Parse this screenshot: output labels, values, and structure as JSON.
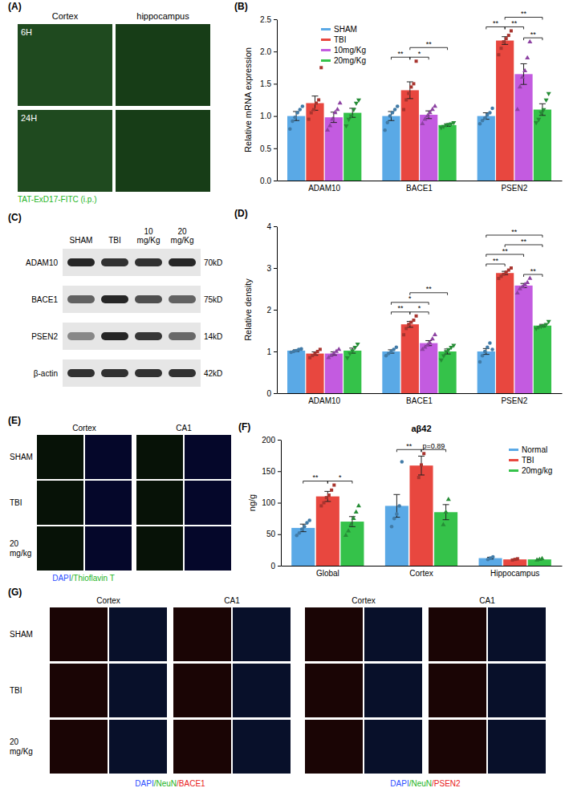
{
  "chart_data": [
    {
      "type": "bar",
      "panel_label": "(B)",
      "y_label": "Relative mRNA expression",
      "categories": [
        "ADAM10",
        "BACE1",
        "PSEN2"
      ],
      "ylim": [
        0,
        2.5
      ],
      "yticks": [
        {
          "value": 0,
          "label": "0.0"
        },
        0.5,
        {
          "value": 1,
          "label": "1.0"
        },
        1.5,
        {
          "value": 2,
          "label": "2.0"
        },
        2.5
      ],
      "legend": "upper left",
      "series": [
        {
          "name": "SHAM",
          "color": "#5aa9e6",
          "marker": "circle",
          "values": [
            1.0,
            1.0,
            1.0
          ],
          "errors": [
            0.07,
            0.07,
            0.05
          ],
          "points": [
            [
              0.8,
              0.92,
              0.98,
              1.05,
              1.1,
              1.15
            ],
            [
              0.78,
              0.9,
              1.0,
              1.05,
              1.1,
              1.15
            ],
            [
              0.88,
              0.93,
              0.97,
              1.02,
              1.05,
              1.12
            ]
          ]
        },
        {
          "name": "TBI",
          "color": "#e8473f",
          "marker": "square",
          "values": [
            1.2,
            1.4,
            2.17
          ],
          "errors": [
            0.11,
            0.13,
            0.06
          ],
          "points": [
            [
              0.95,
              1.05,
              1.1,
              1.2,
              1.25,
              1.75
            ],
            [
              1.1,
              1.25,
              1.35,
              1.45,
              1.5,
              1.85
            ],
            [
              1.95,
              2.05,
              2.15,
              2.2,
              2.25,
              2.32
            ]
          ]
        },
        {
          "name": "10mg/Kg",
          "color": "#c35be0",
          "marker": "triangle",
          "values": [
            0.98,
            1.02,
            1.65
          ],
          "errors": [
            0.08,
            0.06,
            0.16
          ],
          "points": [
            [
              0.78,
              0.85,
              0.95,
              1.05,
              1.1,
              1.2
            ],
            [
              0.88,
              0.95,
              1.0,
              1.05,
              1.1,
              1.15
            ],
            [
              1.1,
              1.45,
              1.6,
              1.7,
              1.9,
              2.15
            ]
          ]
        },
        {
          "name": "20mg/Kg",
          "color": "#35c24a",
          "marker": "triangle-down",
          "values": [
            1.05,
            0.86,
            1.1
          ],
          "errors": [
            0.07,
            0.02,
            0.09
          ],
          "points": [
            [
              0.85,
              0.95,
              1.0,
              1.1,
              1.2,
              1.25
            ],
            [
              0.82,
              0.84,
              0.86,
              0.87,
              0.88,
              0.9
            ],
            [
              0.9,
              0.95,
              1.05,
              1.1,
              1.25,
              1.35
            ]
          ]
        }
      ],
      "annotations": [
        {
          "category": 1,
          "series": [
            0,
            1
          ],
          "label": "**"
        },
        {
          "category": 1,
          "series": [
            1,
            2
          ],
          "label": "*"
        },
        {
          "category": 1,
          "series": [
            1,
            3
          ],
          "label": "**"
        },
        {
          "category": 2,
          "series": [
            0,
            1
          ],
          "label": "**"
        },
        {
          "category": 2,
          "series": [
            1,
            2
          ],
          "label": "**"
        },
        {
          "category": 2,
          "series": [
            2,
            3
          ],
          "label": "**"
        },
        {
          "category": 2,
          "series": [
            1,
            3
          ],
          "label": "**"
        }
      ]
    },
    {
      "type": "bar",
      "panel_label": "(D)",
      "y_label": "Relative density",
      "categories": [
        "ADAM10",
        "BACE1",
        "PSEN2"
      ],
      "ylim": [
        0,
        4
      ],
      "yticks": [
        0,
        1,
        2,
        3,
        4
      ],
      "series": [
        {
          "color": "#5aa9e6",
          "marker": "circle",
          "values": [
            1.02,
            1.0,
            1.0
          ],
          "errors": [
            0.02,
            0.04,
            0.07
          ],
          "points": [
            [
              0.98,
              1.0,
              1.02,
              1.05,
              1.06
            ],
            [
              0.9,
              0.95,
              1.0,
              1.05,
              1.1
            ],
            [
              0.75,
              0.9,
              1.0,
              1.1,
              1.2,
              1.05
            ]
          ]
        },
        {
          "color": "#e8473f",
          "marker": "square",
          "values": [
            0.95,
            1.65,
            2.88
          ],
          "errors": [
            0.04,
            0.07,
            0.04
          ],
          "points": [
            [
              0.85,
              0.9,
              0.95,
              1.0,
              1.05
            ],
            [
              1.4,
              1.55,
              1.65,
              1.7,
              1.75,
              1.85
            ],
            [
              2.75,
              2.8,
              2.85,
              2.9,
              2.95,
              3.0
            ]
          ]
        },
        {
          "color": "#c35be0",
          "marker": "triangle",
          "values": [
            0.95,
            1.2,
            2.58
          ],
          "errors": [
            0.04,
            0.06,
            0.05
          ],
          "points": [
            [
              0.85,
              0.9,
              0.95,
              1.0,
              1.05
            ],
            [
              1.05,
              1.1,
              1.15,
              1.2,
              1.3,
              1.4
            ],
            [
              2.4,
              2.5,
              2.55,
              2.6,
              2.65,
              2.75
            ]
          ]
        },
        {
          "color": "#35c24a",
          "marker": "triangle-down",
          "values": [
            1.02,
            1.0,
            1.62
          ],
          "errors": [
            0.06,
            0.06,
            0.03
          ],
          "points": [
            [
              0.85,
              0.95,
              1.02,
              1.1,
              1.18
            ],
            [
              0.8,
              0.9,
              1.0,
              1.05,
              1.1,
              1.15
            ],
            [
              1.55,
              1.58,
              1.6,
              1.62,
              1.65,
              1.72
            ]
          ]
        }
      ],
      "annotations": [
        {
          "category": 1,
          "series": [
            0,
            1
          ],
          "label": "**"
        },
        {
          "category": 1,
          "series": [
            1,
            2
          ],
          "label": "*"
        },
        {
          "category": 1,
          "series": [
            0,
            2
          ],
          "label": "*"
        },
        {
          "category": 1,
          "series": [
            1,
            3
          ],
          "label": "**"
        },
        {
          "category": 2,
          "series": [
            0,
            1
          ],
          "label": "**"
        },
        {
          "category": 2,
          "series": [
            2,
            3
          ],
          "label": "**"
        },
        {
          "category": 2,
          "series": [
            0,
            2
          ],
          "label": "**"
        },
        {
          "category": 2,
          "series": [
            1,
            3
          ],
          "label": "**"
        },
        {
          "category": 2,
          "series": [
            0,
            3
          ],
          "label": "**"
        }
      ]
    },
    {
      "type": "bar",
      "panel_label": "(F)",
      "title": "aβ42",
      "y_label": "ng/g",
      "categories": [
        "Global",
        "Cortex",
        "Hippocampus"
      ],
      "ylim": [
        0,
        200
      ],
      "yticks": [
        0,
        50,
        100,
        150,
        200
      ],
      "legend": "upper right",
      "series": [
        {
          "name": "Normal",
          "color": "#5aa9e6",
          "marker": "circle",
          "values": [
            60,
            95,
            12
          ],
          "errors": [
            6,
            18,
            1.5
          ],
          "points": [
            [
              48,
              52,
              58,
              62,
              68,
              72
            ],
            [
              62,
              75,
              82,
              95,
              165
            ],
            [
              10,
              12,
              14
            ]
          ]
        },
        {
          "name": "TBI",
          "color": "#e8473f",
          "marker": "square",
          "values": [
            110,
            159,
            10
          ],
          "errors": [
            8,
            15,
            0.7
          ],
          "points": [
            [
              95,
              100,
              108,
              112,
              120,
              128
            ],
            [
              140,
              160,
              178
            ],
            [
              9,
              10,
              11
            ]
          ]
        },
        {
          "name": "20mg/kg",
          "color": "#35c24a",
          "marker": "triangle",
          "values": [
            70,
            85,
            10
          ],
          "errors": [
            8,
            12,
            0.7
          ],
          "points": [
            [
              48,
              55,
              65,
              75,
              85,
              95
            ],
            [
              65,
              85,
              105
            ],
            [
              9,
              10,
              11
            ]
          ]
        }
      ],
      "annotations": [
        {
          "category": 0,
          "series": [
            0,
            1
          ],
          "label": "**"
        },
        {
          "category": 0,
          "series": [
            1,
            2
          ],
          "label": "*"
        },
        {
          "category": 1,
          "series": [
            0,
            1
          ],
          "label": "**"
        },
        {
          "category": 1,
          "series": [
            1,
            2
          ],
          "label": "p=0.89"
        }
      ]
    }
  ],
  "panels": {
    "A": {
      "label": "(A)",
      "columns": [
        "Cortex",
        "hippocampus"
      ],
      "rows": [
        "6H",
        "24H"
      ],
      "caption": [
        {
          "text": "TAT-ExD17-FITC (i.p.)",
          "color": "#22b422"
        }
      ]
    },
    "C": {
      "label": "(C)",
      "lanes": [
        "SHAM",
        "TBI",
        "10 mg/Kg",
        "20 mg/Kg"
      ],
      "blots": [
        {
          "protein": "ADAM10",
          "size": "70kD"
        },
        {
          "protein": "BACE1",
          "size": "75kD"
        },
        {
          "protein": "PSEN2",
          "size": "14kD"
        },
        {
          "protein": "β-actin",
          "size": "42kD"
        }
      ]
    },
    "E": {
      "label": "(E)",
      "columns": [
        "Cortex",
        "CA1"
      ],
      "rows": [
        "SHAM",
        "TBI",
        "20 mg/kg"
      ],
      "caption": [
        {
          "text": "DAPI",
          "color": "#2a4dff"
        },
        {
          "text": "/Thioflavin T",
          "color": "#22b422"
        }
      ]
    },
    "G": {
      "label": "(G)",
      "rows": [
        "SHAM",
        "TBI",
        "20 mg/Kg"
      ],
      "blocks": [
        {
          "columns": [
            "Cortex",
            "CA1"
          ],
          "caption": [
            {
              "text": "DAPI",
              "color": "#2a4dff"
            },
            {
              "text": "/NeuN",
              "color": "#22b422"
            },
            {
              "text": "/BACE1",
              "color": "#e82020"
            }
          ]
        },
        {
          "columns": [
            "Cortex",
            "CA1"
          ],
          "caption": [
            {
              "text": "DAPI",
              "color": "#2a4dff"
            },
            {
              "text": "/NeuN",
              "color": "#22b422"
            },
            {
              "text": "/PSEN2",
              "color": "#e82020"
            }
          ]
        }
      ]
    }
  }
}
